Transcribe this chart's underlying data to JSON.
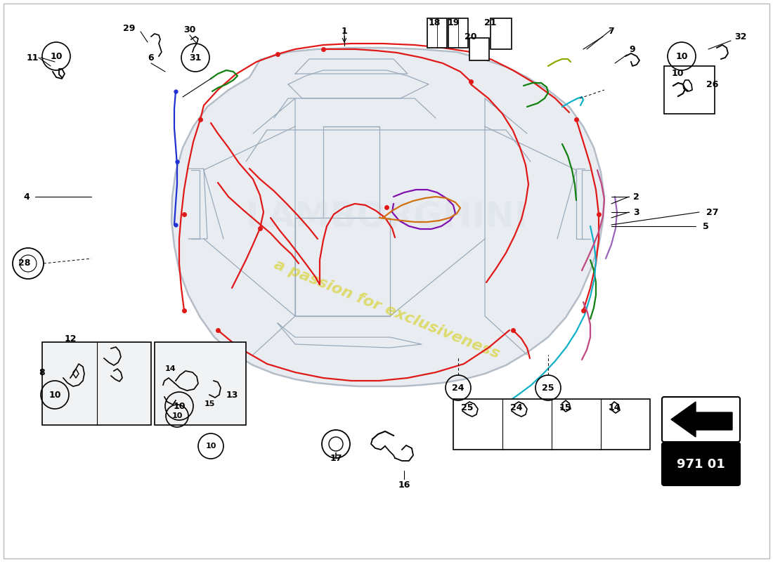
{
  "bg": "#ffffff",
  "fig_w": 11.0,
  "fig_h": 8.0,
  "dpi": 100,
  "xlim": [
    0,
    1100
  ],
  "ylim": [
    0,
    800
  ],
  "car_body_color": "#d8dfe8",
  "car_edge_color": "#8090a0",
  "panel_line_color": "#9aaaba",
  "red": "#e01818",
  "blue": "#2030d0",
  "green": "#108010",
  "purple": "#8010b0",
  "orange": "#d07010",
  "cyan": "#10b0c8",
  "lime": "#88aa00",
  "pink": "#c04880",
  "lw_wire": 1.6,
  "watermark_text": "a passion for exclusiveness",
  "watermark_color": "#d4cc00",
  "part_number": "971 01"
}
